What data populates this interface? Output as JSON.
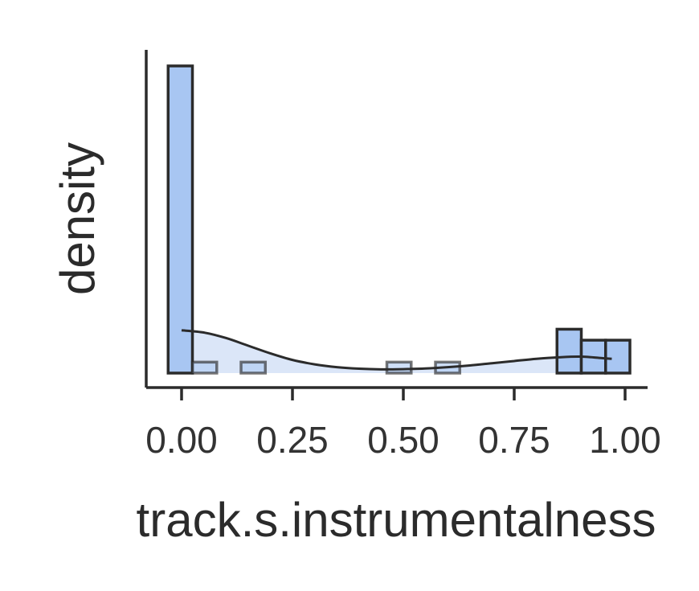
{
  "chart_data": {
    "type": "histogram",
    "xlabel": "track.s.instrumentalness",
    "ylabel": "density",
    "x_ticks": [
      0.0,
      0.25,
      0.5,
      0.75,
      1.0
    ],
    "x_tick_labels": [
      "0.00",
      "0.25",
      "0.50",
      "0.75",
      "1.00"
    ],
    "xlim": [
      -0.075,
      1.05
    ],
    "ylim": [
      0,
      14.5
    ],
    "y_ticks_shown": false,
    "grid": false,
    "bins": [
      {
        "x0": -0.0303,
        "x1": 0.0245,
        "density": 14.0
      },
      {
        "x0": 0.0245,
        "x1": 0.0793,
        "density": 0.5
      },
      {
        "x0": 0.1341,
        "x1": 0.1889,
        "density": 0.5
      },
      {
        "x0": 0.4629,
        "x1": 0.5177,
        "density": 0.5
      },
      {
        "x0": 0.5725,
        "x1": 0.6273,
        "density": 0.5
      },
      {
        "x0": 0.8465,
        "x1": 0.9013,
        "density": 2.0
      },
      {
        "x0": 0.9013,
        "x1": 0.9561,
        "density": 1.5
      },
      {
        "x0": 0.9561,
        "x1": 1.0109,
        "density": 1.5
      }
    ],
    "kde": {
      "x": [
        0.0,
        0.05,
        0.1,
        0.15,
        0.2,
        0.25,
        0.3,
        0.35,
        0.4,
        0.45,
        0.5,
        0.55,
        0.6,
        0.65,
        0.7,
        0.75,
        0.8,
        0.85,
        0.9,
        0.95,
        0.97
      ],
      "y": [
        1.95,
        1.85,
        1.6,
        1.25,
        0.9,
        0.6,
        0.4,
        0.27,
        0.2,
        0.17,
        0.18,
        0.21,
        0.27,
        0.35,
        0.45,
        0.55,
        0.65,
        0.72,
        0.75,
        0.68,
        0.65
      ]
    },
    "colors": {
      "bar_fill": "#a8c6f2",
      "bar_edge": "#2b2b2b",
      "kde_fill": "#dbe6f8",
      "kde_line": "#2b2b2b",
      "axis": "#2b2b2b"
    }
  }
}
